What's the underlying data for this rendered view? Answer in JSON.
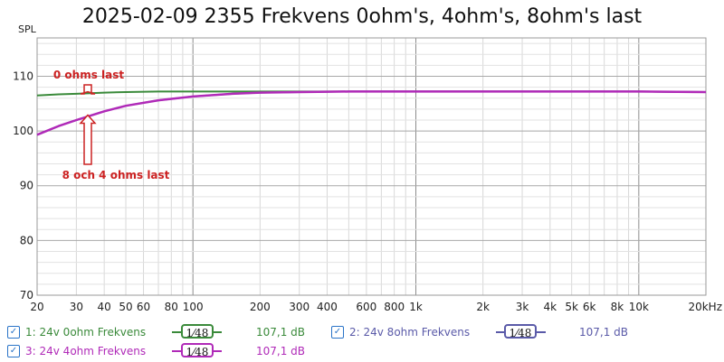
{
  "chart_data": {
    "type": "line",
    "title": "2025-02-09 2355 Frekvens 0ohm's, 4ohm's, 8ohm's last",
    "ylabel": "SPL",
    "xlabel": "",
    "x_scale": "log",
    "xlim": [
      20,
      20000
    ],
    "ylim": [
      70,
      117
    ],
    "grid": true,
    "x_ticks": [
      20,
      30,
      40,
      50,
      60,
      80,
      100,
      200,
      300,
      400,
      600,
      800,
      1000,
      2000,
      3000,
      4000,
      5000,
      6000,
      8000,
      10000,
      20000
    ],
    "x_tick_labels": [
      "20",
      "30",
      "40",
      "50",
      "60",
      "80",
      "100",
      "200",
      "300",
      "400",
      "600",
      "800",
      "1k",
      "2k",
      "3k",
      "4k",
      "5k",
      "6k",
      "8k",
      "10k",
      "20kHz"
    ],
    "y_ticks": [
      70,
      80,
      90,
      100,
      110
    ],
    "y_tick_labels": [
      "70",
      "80",
      "90",
      "100",
      "110"
    ],
    "series": [
      {
        "name": "1: 24v 0ohm Frekvens",
        "color": "#3a8a3a",
        "x": [
          20,
          25,
          30,
          40,
          50,
          70,
          100,
          150,
          200,
          300,
          500,
          1000,
          2000,
          5000,
          10000,
          20000
        ],
        "y": [
          106.5,
          106.7,
          106.8,
          107.0,
          107.1,
          107.2,
          107.2,
          107.2,
          107.2,
          107.2,
          107.2,
          107.2,
          107.2,
          107.2,
          107.2,
          107.1
        ]
      },
      {
        "name": "2: 24v 8ohm Frekvens",
        "color": "#5a5aa8",
        "x": [
          20,
          25,
          30,
          40,
          50,
          70,
          100,
          150,
          200,
          300,
          500,
          1000,
          2000,
          5000,
          10000,
          20000
        ],
        "y": [
          99.3,
          100.9,
          102.0,
          103.6,
          104.6,
          105.6,
          106.3,
          106.8,
          107.0,
          107.1,
          107.2,
          107.2,
          107.2,
          107.2,
          107.2,
          107.1
        ]
      },
      {
        "name": "3: 24v 4ohm Frekvens",
        "color": "#b02ab8",
        "x": [
          20,
          25,
          30,
          40,
          50,
          70,
          100,
          150,
          200,
          300,
          500,
          1000,
          2000,
          5000,
          10000,
          20000
        ],
        "y": [
          99.3,
          100.9,
          102.0,
          103.6,
          104.6,
          105.6,
          106.3,
          106.8,
          107.0,
          107.1,
          107.2,
          107.2,
          107.2,
          107.2,
          107.2,
          107.1
        ]
      }
    ],
    "annotations": [
      {
        "text": "0 ohms last",
        "color": "#cc2222"
      },
      {
        "text": "8 och 4 ohms last",
        "color": "#cc2222"
      }
    ]
  },
  "legend": [
    {
      "checked": true,
      "name": "1: 24v 0ohm Frekvens",
      "smoothing": "1⁄48",
      "value": "107,1 dB",
      "color": "#3a8a3a"
    },
    {
      "checked": true,
      "name": "2: 24v 8ohm Frekvens",
      "smoothing": "1⁄48",
      "value": "107,1 dB",
      "color": "#5a5aa8"
    },
    {
      "checked": true,
      "name": "3: 24v 4ohm Frekvens",
      "smoothing": "1⁄48",
      "value": "107,1 dB",
      "color": "#b02ab8"
    }
  ]
}
